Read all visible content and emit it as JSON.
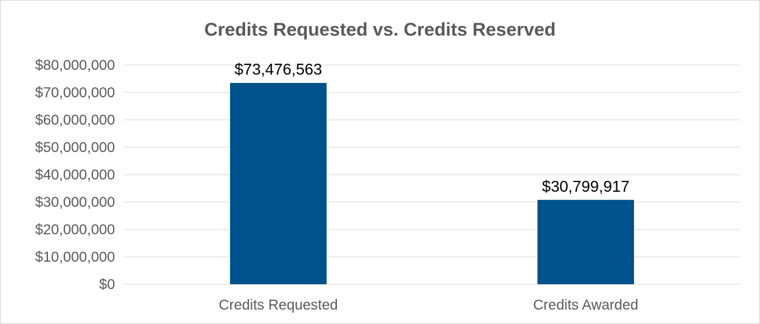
{
  "chart_data": {
    "type": "bar",
    "title": "Credits Requested vs. Credits Reserved",
    "xlabel": "",
    "ylabel": "",
    "categories": [
      "Credits Requested",
      "Credits Awarded"
    ],
    "values": [
      73476563,
      30799917
    ],
    "data_labels": [
      "$73,476,563",
      "$30,799,917"
    ],
    "ylim": [
      0,
      80000000
    ],
    "y_ticks": [
      0,
      10000000,
      20000000,
      30000000,
      40000000,
      50000000,
      60000000,
      70000000,
      80000000
    ],
    "y_tick_labels": [
      "$0",
      "$10,000,000",
      "$20,000,000",
      "$30,000,000",
      "$40,000,000",
      "$50,000,000",
      "$60,000,000",
      "$70,000,000",
      "$80,000,000"
    ],
    "grid": true,
    "legend": "none",
    "bar_color": "#00538a",
    "grid_color": "#d9d9d9"
  }
}
